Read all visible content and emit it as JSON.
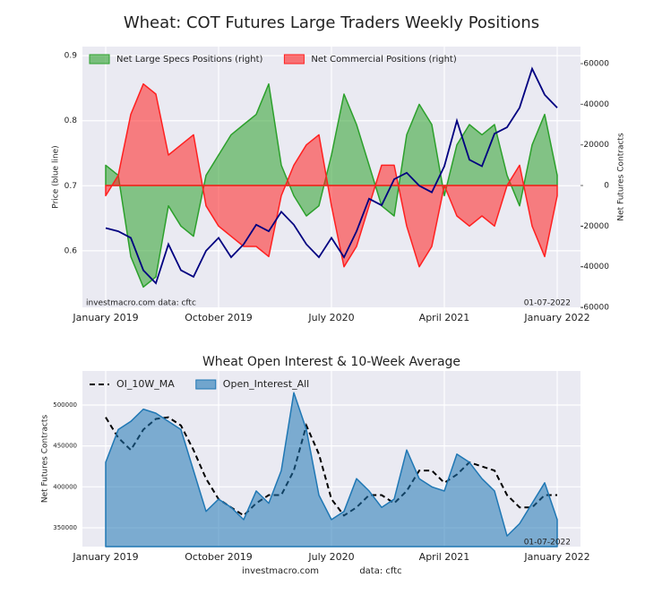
{
  "chart_data": [
    {
      "type": "line",
      "title": "Wheat: COT Futures Large Traders Weekly Positions",
      "ylabel": "Price (blue line)",
      "y2label": "Net Futures Contracts",
      "annotations": [
        "investmacro.com   data: cftc",
        "01-07-2022"
      ],
      "x": [
        "2019-01",
        "2019-02",
        "2019-03",
        "2019-04",
        "2019-05",
        "2019-06",
        "2019-07",
        "2019-08",
        "2019-09",
        "2019-10",
        "2019-11",
        "2019-12",
        "2020-01",
        "2020-02",
        "2020-03",
        "2020-04",
        "2020-05",
        "2020-06",
        "2020-07",
        "2020-08",
        "2020-09",
        "2020-10",
        "2020-11",
        "2020-12",
        "2021-01",
        "2021-02",
        "2021-03",
        "2021-04",
        "2021-05",
        "2021-06",
        "2021-07",
        "2021-08",
        "2021-09",
        "2021-10",
        "2021-11",
        "2021-12",
        "2022-01"
      ],
      "xticks": [
        {
          "value": "2019-01",
          "label": "January 2019"
        },
        {
          "value": "2019-10",
          "label": "October 2019"
        },
        {
          "value": "2020-07",
          "label": "July 2020"
        },
        {
          "value": "2021-04",
          "label": "April 2021"
        },
        {
          "value": "2022-01",
          "label": "January 2022"
        }
      ],
      "ylim": [
        0.513,
        0.914
      ],
      "yticks": [
        0.6,
        0.7,
        0.8,
        0.9
      ],
      "y2lim": [
        -60000,
        68400
      ],
      "y2ticks": [
        -60000,
        -40000,
        -20000,
        0,
        20000,
        40000,
        60000
      ],
      "grid": true,
      "legend": "upper left",
      "series": [
        {
          "name": "Net Large Specs Positions (right)",
          "color": "#2ca02c",
          "style": "area",
          "axis": "y2",
          "values": [
            10000,
            5000,
            -35000,
            -50000,
            -45000,
            -10000,
            -20000,
            -25000,
            5000,
            15000,
            25000,
            30000,
            35000,
            50000,
            10000,
            -5000,
            -15000,
            -10000,
            15000,
            45000,
            30000,
            10000,
            -10000,
            -15000,
            25000,
            40000,
            30000,
            -5000,
            20000,
            30000,
            25000,
            30000,
            5000,
            -10000,
            20000,
            35000,
            5000
          ]
        },
        {
          "name": "Net Commercial Positions (right)",
          "color": "#ff2020",
          "style": "area",
          "axis": "y2",
          "values": [
            -5000,
            5000,
            35000,
            50000,
            45000,
            15000,
            20000,
            25000,
            -10000,
            -20000,
            -25000,
            -30000,
            -30000,
            -35000,
            -5000,
            10000,
            20000,
            25000,
            -10000,
            -40000,
            -30000,
            -10000,
            10000,
            10000,
            -20000,
            -40000,
            -30000,
            0,
            -15000,
            -20000,
            -15000,
            -20000,
            0,
            10000,
            -20000,
            -35000,
            -5000
          ]
        },
        {
          "name": "Price",
          "color": "#000080",
          "style": "line",
          "values": [
            0.635,
            0.63,
            0.62,
            0.57,
            0.55,
            0.61,
            0.57,
            0.56,
            0.6,
            0.62,
            0.59,
            0.61,
            0.64,
            0.63,
            0.66,
            0.64,
            0.61,
            0.59,
            0.62,
            0.59,
            0.63,
            0.68,
            0.67,
            0.71,
            0.72,
            0.7,
            0.69,
            0.73,
            0.8,
            0.74,
            0.73,
            0.78,
            0.79,
            0.82,
            0.88,
            0.84,
            0.82
          ]
        }
      ]
    },
    {
      "type": "line",
      "title": "Wheat Open Interest & 10-Week Average",
      "ylabel": "Net Futures Contracts",
      "annotations": [
        "01-07-2022"
      ],
      "footer": [
        "investmacro.com",
        "data: cftc"
      ],
      "x": [
        "2019-01",
        "2019-02",
        "2019-03",
        "2019-04",
        "2019-05",
        "2019-06",
        "2019-07",
        "2019-08",
        "2019-09",
        "2019-10",
        "2019-11",
        "2019-12",
        "2020-01",
        "2020-02",
        "2020-03",
        "2020-04",
        "2020-05",
        "2020-06",
        "2020-07",
        "2020-08",
        "2020-09",
        "2020-10",
        "2020-11",
        "2020-12",
        "2021-01",
        "2021-02",
        "2021-03",
        "2021-04",
        "2021-05",
        "2021-06",
        "2021-07",
        "2021-08",
        "2021-09",
        "2021-10",
        "2021-11",
        "2021-12",
        "2022-01"
      ],
      "xticks": [
        {
          "value": "2019-01",
          "label": "January 2019"
        },
        {
          "value": "2019-10",
          "label": "October 2019"
        },
        {
          "value": "2020-07",
          "label": "July 2020"
        },
        {
          "value": "2021-04",
          "label": "April 2021"
        },
        {
          "value": "2022-01",
          "label": "January 2022"
        }
      ],
      "ylim": [
        327000,
        541600
      ],
      "yticks": [
        350000,
        400000,
        450000,
        500000
      ],
      "grid": true,
      "legend": "upper left",
      "series": [
        {
          "name": "OI_10W_MA",
          "color": "#000000",
          "style": "dashed",
          "values": [
            485000,
            460000,
            445000,
            470000,
            483000,
            485000,
            475000,
            445000,
            410000,
            385000,
            375000,
            365000,
            380000,
            390000,
            390000,
            420000,
            475000,
            440000,
            385000,
            365000,
            375000,
            390000,
            390000,
            380000,
            395000,
            420000,
            420000,
            405000,
            415000,
            430000,
            425000,
            420000,
            390000,
            375000,
            375000,
            390000,
            390000
          ]
        },
        {
          "name": "Open_Interest_All",
          "color": "#1f77b4",
          "style": "area",
          "values": [
            430000,
            470000,
            480000,
            495000,
            490000,
            480000,
            470000,
            420000,
            370000,
            385000,
            375000,
            360000,
            395000,
            380000,
            420000,
            515000,
            470000,
            390000,
            360000,
            370000,
            410000,
            395000,
            375000,
            385000,
            445000,
            410000,
            400000,
            395000,
            440000,
            430000,
            410000,
            395000,
            340000,
            355000,
            380000,
            405000,
            360000
          ]
        }
      ]
    }
  ]
}
